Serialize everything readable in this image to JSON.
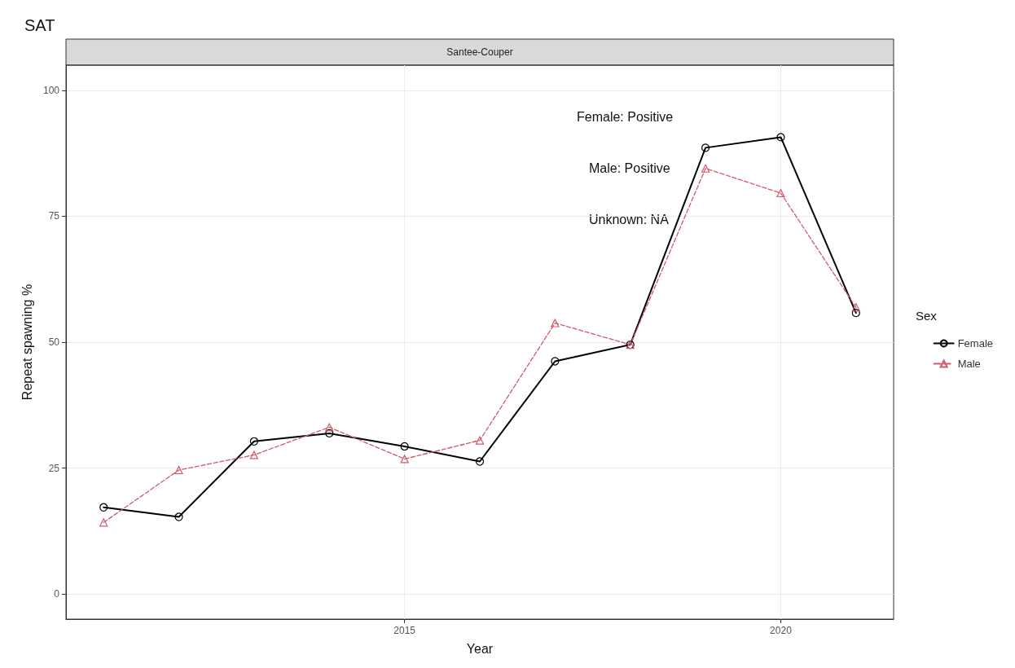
{
  "chart_data": {
    "type": "line",
    "title": "SAT",
    "subtitle": "Santee-Couper",
    "xlabel": "Year",
    "ylabel": "Repeat spawning %",
    "legend_title": "Sex",
    "x": [
      2011,
      2012,
      2013,
      2014,
      2015,
      2016,
      2017,
      2018,
      2019,
      2020,
      2021
    ],
    "series": [
      {
        "name": "Female",
        "color": "#000000",
        "marker": "circle",
        "line_style": "solid",
        "values": [
          17.2,
          15.3,
          30.3,
          31.9,
          29.3,
          26.3,
          46.2,
          49.5,
          88.6,
          90.7,
          55.8
        ]
      },
      {
        "name": "Male",
        "color": "#d05a6a",
        "marker": "triangle",
        "line_style": "dashed",
        "values": [
          14.2,
          24.6,
          27.6,
          33.1,
          26.8,
          30.5,
          53.8,
          49.5,
          84.5,
          79.6,
          56.9
        ]
      }
    ],
    "xlim": [
      2010.5,
      2021.5
    ],
    "xticks": [
      2015,
      2020
    ],
    "ylim": [
      -5,
      105
    ],
    "yticks": [
      0,
      25,
      50,
      75,
      100
    ],
    "grid": true,
    "legend": "right",
    "annotations": [
      "Female: Positive",
      "Male: Positive",
      "Unknown: NA"
    ]
  }
}
